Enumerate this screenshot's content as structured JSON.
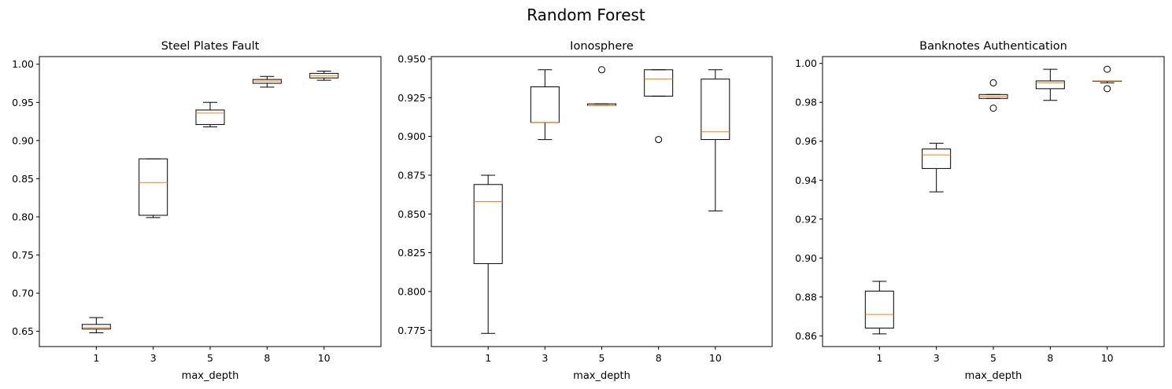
{
  "figure": {
    "suptitle": "Random Forest"
  },
  "chart_data": [
    {
      "type": "boxplot",
      "title": "Steel Plates Fault",
      "xlabel": "max_depth",
      "ylabel": "",
      "categories": [
        "1",
        "3",
        "5",
        "8",
        "10"
      ],
      "ylim": [
        0.63,
        1.01
      ],
      "yticks": [
        0.65,
        0.7,
        0.75,
        0.8,
        0.85,
        0.9,
        0.95,
        1.0
      ],
      "ytick_decimals": 2,
      "boxes": [
        {
          "whislo": 0.648,
          "q1": 0.653,
          "med": 0.655,
          "q3": 0.659,
          "whishi": 0.668,
          "fliers": []
        },
        {
          "whislo": 0.799,
          "q1": 0.802,
          "med": 0.845,
          "q3": 0.876,
          "whishi": 0.876,
          "fliers": []
        },
        {
          "whislo": 0.918,
          "q1": 0.921,
          "med": 0.936,
          "q3": 0.94,
          "whishi": 0.95,
          "fliers": []
        },
        {
          "whislo": 0.97,
          "q1": 0.975,
          "med": 0.978,
          "q3": 0.98,
          "whishi": 0.984,
          "fliers": []
        },
        {
          "whislo": 0.979,
          "q1": 0.982,
          "med": 0.985,
          "q3": 0.988,
          "whishi": 0.991,
          "fliers": []
        }
      ]
    },
    {
      "type": "boxplot",
      "title": "Ionosphere",
      "xlabel": "max_depth",
      "ylabel": "",
      "categories": [
        "1",
        "3",
        "5",
        "8",
        "10"
      ],
      "ylim": [
        0.7645,
        0.9515
      ],
      "yticks": [
        0.775,
        0.8,
        0.825,
        0.85,
        0.875,
        0.9,
        0.925,
        0.95
      ],
      "ytick_decimals": 3,
      "boxes": [
        {
          "whislo": 0.773,
          "q1": 0.818,
          "med": 0.858,
          "q3": 0.869,
          "whishi": 0.875,
          "fliers": []
        },
        {
          "whislo": 0.898,
          "q1": 0.909,
          "med": 0.909,
          "q3": 0.932,
          "whishi": 0.943,
          "fliers": []
        },
        {
          "whislo": 0.92,
          "q1": 0.92,
          "med": 0.92,
          "q3": 0.921,
          "whishi": 0.921,
          "fliers": [
            0.943
          ]
        },
        {
          "whislo": 0.926,
          "q1": 0.926,
          "med": 0.937,
          "q3": 0.943,
          "whishi": 0.943,
          "fliers": [
            0.898
          ]
        },
        {
          "whislo": 0.852,
          "q1": 0.898,
          "med": 0.903,
          "q3": 0.937,
          "whishi": 0.943,
          "fliers": []
        }
      ]
    },
    {
      "type": "boxplot",
      "title": "Banknotes Authentication",
      "xlabel": "max_depth",
      "ylabel": "",
      "categories": [
        "1",
        "3",
        "5",
        "8",
        "10"
      ],
      "ylim": [
        0.8545,
        1.0035
      ],
      "yticks": [
        0.86,
        0.88,
        0.9,
        0.92,
        0.94,
        0.96,
        0.98,
        1.0
      ],
      "ytick_decimals": 2,
      "boxes": [
        {
          "whislo": 0.861,
          "q1": 0.864,
          "med": 0.871,
          "q3": 0.883,
          "whishi": 0.888,
          "fliers": []
        },
        {
          "whislo": 0.934,
          "q1": 0.946,
          "med": 0.953,
          "q3": 0.956,
          "whishi": 0.959,
          "fliers": []
        },
        {
          "whislo": 0.982,
          "q1": 0.982,
          "med": 0.983,
          "q3": 0.984,
          "whishi": 0.984,
          "fliers": [
            0.99,
            0.977
          ]
        },
        {
          "whislo": 0.981,
          "q1": 0.987,
          "med": 0.99,
          "q3": 0.991,
          "whishi": 0.997,
          "fliers": []
        },
        {
          "whislo": 0.99,
          "q1": 0.991,
          "med": 0.991,
          "q3": 0.991,
          "whishi": 0.991,
          "fliers": [
            0.997,
            0.987
          ]
        }
      ]
    }
  ],
  "colors": {
    "box": "#000000",
    "median": "#ff7f0e",
    "flier": "#000000"
  }
}
